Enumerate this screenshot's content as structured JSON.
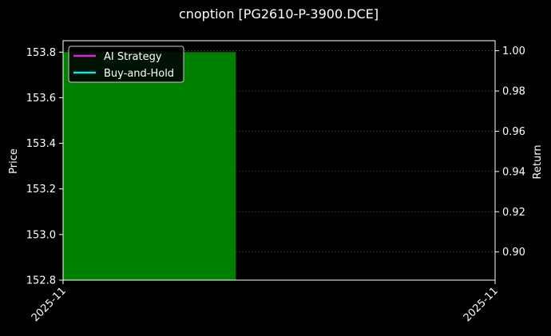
{
  "chart_data": {
    "type": "bar",
    "title": "cnoption [PG2610-P-3900.DCE]",
    "ylabel": "Price",
    "y2label": "Return",
    "ylim": [
      152.8,
      153.85
    ],
    "y2lim": [
      0.886,
      1.005
    ],
    "yticks": [
      152.8,
      153.0,
      153.2,
      153.4,
      153.6,
      153.8
    ],
    "ytick_labels": [
      "152.8",
      "153.0",
      "153.2",
      "153.4",
      "153.6",
      "153.8"
    ],
    "y2ticks": [
      0.9,
      0.92,
      0.94,
      0.96,
      0.98,
      1.0
    ],
    "y2tick_labels": [
      "0.90",
      "0.92",
      "0.94",
      "0.96",
      "0.98",
      "1.00"
    ],
    "xtick_labels": [
      "2025-11",
      "2025-11"
    ],
    "bars": [
      {
        "value": 153.8,
        "color": "#008000"
      }
    ],
    "legend": {
      "placement": "top-left",
      "entries": [
        {
          "label": "AI Strategy",
          "color": "#e020e0"
        },
        {
          "label": "Buy-and-Hold",
          "color": "#20e0f0"
        }
      ]
    },
    "grid": true,
    "colors": {
      "background": "#000000",
      "axis": "#ffffff",
      "grid": "#555555"
    }
  }
}
